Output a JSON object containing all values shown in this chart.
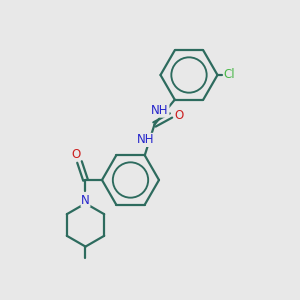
{
  "background_color": "#e8e8e8",
  "bond_color": "#2d6b5e",
  "N_color": "#2424cc",
  "O_color": "#cc2020",
  "Cl_color": "#4ab84a",
  "line_width": 1.6,
  "figsize": [
    3.0,
    3.0
  ],
  "dpi": 100,
  "xlim": [
    0,
    10
  ],
  "ylim": [
    0,
    10
  ]
}
